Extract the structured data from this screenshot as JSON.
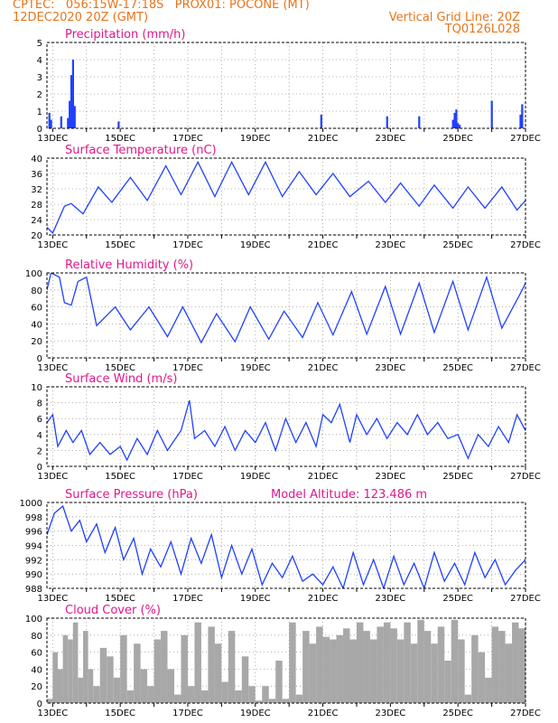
{
  "header": {
    "left_line1": "CPTEC:   056:15W-17:18S   PROX01: POCONE (MT)",
    "left_line2": "12DEC2020 20Z (GMT)",
    "right_line1": "Vertical Grid Line: 20Z",
    "right_line2": "TQ0126L028",
    "color": "#e8741a"
  },
  "x_ticks": [
    "13DEC",
    "15DEC",
    "17DEC",
    "19DEC",
    "21DEC",
    "23DEC",
    "25DEC",
    "27DEC"
  ],
  "chart_data": [
    {
      "type": "bar",
      "title": "Precipitation (mm/h)",
      "ylim": [
        0,
        5
      ],
      "yticks": [
        0,
        1,
        2,
        3,
        4,
        5
      ],
      "color": "#2040ff",
      "x": [
        12.9,
        12.95,
        13.25,
        13.45,
        13.5,
        13.55,
        13.6,
        13.65,
        14.95,
        20.95,
        22.9,
        23.85,
        24.85,
        24.9,
        24.95,
        25.0,
        25.05,
        26.0,
        26.85,
        26.9
      ],
      "values": [
        0.9,
        0.5,
        0.7,
        0.6,
        1.6,
        3.1,
        4.0,
        1.3,
        0.4,
        0.8,
        0.7,
        0.7,
        0.5,
        0.9,
        1.1,
        0.3,
        0.2,
        1.6,
        0.8,
        1.4
      ]
    },
    {
      "type": "line",
      "title": "Surface Temperature (nC)",
      "ylim": [
        20,
        40
      ],
      "yticks": [
        20,
        24,
        28,
        32,
        36,
        40
      ],
      "color": "#2040ff",
      "x": [
        12.83,
        13.0,
        13.35,
        13.55,
        13.9,
        14.35,
        14.75,
        15.3,
        15.8,
        16.35,
        16.8,
        17.3,
        17.8,
        18.3,
        18.8,
        19.3,
        19.8,
        20.3,
        20.8,
        21.3,
        21.8,
        22.35,
        22.85,
        23.3,
        23.85,
        24.3,
        24.85,
        25.3,
        25.8,
        26.3,
        26.75,
        27.0
      ],
      "values": [
        22,
        20.5,
        27.5,
        28.2,
        25.5,
        32.5,
        28.5,
        35.0,
        29.0,
        38.0,
        30.5,
        39.0,
        30.0,
        39.0,
        30.5,
        39.0,
        30.0,
        36.5,
        30.5,
        36.0,
        30.0,
        34.0,
        28.5,
        33.5,
        27.5,
        33.0,
        27.0,
        32.5,
        27.0,
        32.5,
        26.5,
        29.0
      ]
    },
    {
      "type": "line",
      "title": "Relative Humidity (%)",
      "ylim": [
        0,
        100
      ],
      "yticks": [
        0,
        20,
        40,
        60,
        80,
        100
      ],
      "color": "#2040ff",
      "x": [
        12.83,
        12.95,
        13.2,
        13.35,
        13.55,
        13.75,
        14.0,
        14.3,
        14.85,
        15.3,
        15.85,
        16.4,
        16.85,
        17.4,
        17.85,
        18.4,
        18.85,
        19.4,
        19.85,
        20.4,
        20.85,
        21.3,
        21.85,
        22.3,
        22.85,
        23.3,
        23.85,
        24.3,
        24.85,
        25.3,
        25.85,
        26.3,
        26.85,
        27.0
      ],
      "values": [
        80,
        100,
        95,
        65,
        62,
        90,
        95,
        38,
        60,
        33,
        60,
        25,
        60,
        18,
        52,
        19,
        60,
        22,
        55,
        24,
        65,
        27,
        78,
        28,
        84,
        28,
        88,
        30,
        90,
        33,
        95,
        35,
        76,
        88
      ]
    },
    {
      "type": "line",
      "title": "Surface Wind (m/s)",
      "ylim": [
        0,
        10
      ],
      "yticks": [
        0,
        2,
        4,
        6,
        8,
        10
      ],
      "color": "#2040ff",
      "x": [
        12.83,
        13.0,
        13.15,
        13.4,
        13.6,
        13.85,
        14.1,
        14.4,
        14.7,
        15.0,
        15.2,
        15.5,
        15.8,
        16.1,
        16.4,
        16.8,
        17.05,
        17.2,
        17.5,
        17.8,
        18.1,
        18.4,
        18.7,
        19.0,
        19.3,
        19.6,
        19.9,
        20.2,
        20.5,
        20.8,
        21.0,
        21.25,
        21.5,
        21.8,
        22.0,
        22.3,
        22.6,
        22.9,
        23.2,
        23.5,
        23.8,
        24.1,
        24.4,
        24.7,
        25.0,
        25.3,
        25.6,
        25.9,
        26.2,
        26.5,
        26.75,
        27.0
      ],
      "values": [
        5.5,
        6.5,
        2.5,
        4.5,
        3.0,
        4.5,
        1.5,
        3.0,
        1.5,
        2.5,
        0.8,
        3.5,
        1.5,
        4.5,
        2.0,
        4.5,
        8.3,
        3.5,
        4.5,
        2.5,
        5.0,
        2.0,
        4.5,
        3.0,
        5.5,
        2.0,
        6.0,
        3.0,
        5.5,
        2.5,
        6.5,
        5.5,
        7.8,
        3.0,
        6.5,
        4.0,
        6.0,
        3.5,
        5.5,
        4.0,
        6.5,
        4.0,
        5.5,
        3.5,
        4.0,
        1.0,
        4.0,
        2.5,
        5.0,
        3.0,
        6.5,
        4.5
      ]
    },
    {
      "type": "line",
      "title": "Surface Pressure (hPa)",
      "annotation": "Model Altitude: 123.486  m",
      "ylim": [
        988,
        1000
      ],
      "yticks": [
        988,
        990,
        992,
        994,
        996,
        998,
        1000
      ],
      "color": "#2040ff",
      "x": [
        12.83,
        13.05,
        13.3,
        13.55,
        13.8,
        14.0,
        14.3,
        14.55,
        14.85,
        15.1,
        15.4,
        15.65,
        15.9,
        16.2,
        16.5,
        16.8,
        17.1,
        17.4,
        17.7,
        18.0,
        18.3,
        18.6,
        18.9,
        19.2,
        19.5,
        19.8,
        20.1,
        20.4,
        20.7,
        21.0,
        21.3,
        21.6,
        21.9,
        22.2,
        22.5,
        22.8,
        23.1,
        23.4,
        23.7,
        24.0,
        24.3,
        24.6,
        24.9,
        25.2,
        25.5,
        25.8,
        26.1,
        26.4,
        26.7,
        27.0
      ],
      "values": [
        995.5,
        998.5,
        999.5,
        996.0,
        997.5,
        994.5,
        997.0,
        993.0,
        996.5,
        992.0,
        995.0,
        990.0,
        993.5,
        991.0,
        994.5,
        990.0,
        995.0,
        991.5,
        995.5,
        989.5,
        994.0,
        990.0,
        993.5,
        988.5,
        991.5,
        989.5,
        992.5,
        989.0,
        990.0,
        988.5,
        991.0,
        988.0,
        993.0,
        988.5,
        992.0,
        988.0,
        992.5,
        988.5,
        991.5,
        988.0,
        993.0,
        989.0,
        991.5,
        988.5,
        993.0,
        989.5,
        992.0,
        988.5,
        990.5,
        992.0
      ]
    },
    {
      "type": "area",
      "title": "Cloud Cover (%)",
      "ylim": [
        0,
        100
      ],
      "yticks": [
        0,
        20,
        40,
        60,
        80,
        100
      ],
      "color": "#a8a8a8",
      "x": [
        12.83,
        13.0,
        13.15,
        13.3,
        13.45,
        13.6,
        13.75,
        13.9,
        14.05,
        14.2,
        14.4,
        14.6,
        14.8,
        15.0,
        15.2,
        15.4,
        15.6,
        15.8,
        16.0,
        16.2,
        16.4,
        16.6,
        16.8,
        17.0,
        17.2,
        17.4,
        17.6,
        17.8,
        18.0,
        18.2,
        18.4,
        18.6,
        18.8,
        19.0,
        19.2,
        19.4,
        19.6,
        19.8,
        20.0,
        20.2,
        20.4,
        20.6,
        20.8,
        21.0,
        21.2,
        21.4,
        21.6,
        21.8,
        22.0,
        22.2,
        22.4,
        22.6,
        22.8,
        23.0,
        23.2,
        23.4,
        23.6,
        23.8,
        24.0,
        24.2,
        24.4,
        24.6,
        24.8,
        25.0,
        25.2,
        25.4,
        25.6,
        25.8,
        26.0,
        26.2,
        26.4,
        26.6,
        26.8,
        27.0
      ],
      "values": [
        5,
        60,
        40,
        80,
        75,
        95,
        30,
        85,
        40,
        20,
        65,
        55,
        30,
        80,
        15,
        70,
        40,
        20,
        75,
        85,
        40,
        10,
        80,
        20,
        95,
        15,
        90,
        70,
        25,
        85,
        15,
        55,
        20,
        3,
        20,
        5,
        50,
        5,
        95,
        10,
        85,
        70,
        90,
        78,
        75,
        80,
        88,
        75,
        95,
        85,
        75,
        90,
        95,
        88,
        75,
        95,
        70,
        98,
        85,
        70,
        90,
        50,
        98,
        75,
        10,
        80,
        60,
        30,
        90,
        85,
        70,
        95,
        88,
        95
      ]
    }
  ]
}
